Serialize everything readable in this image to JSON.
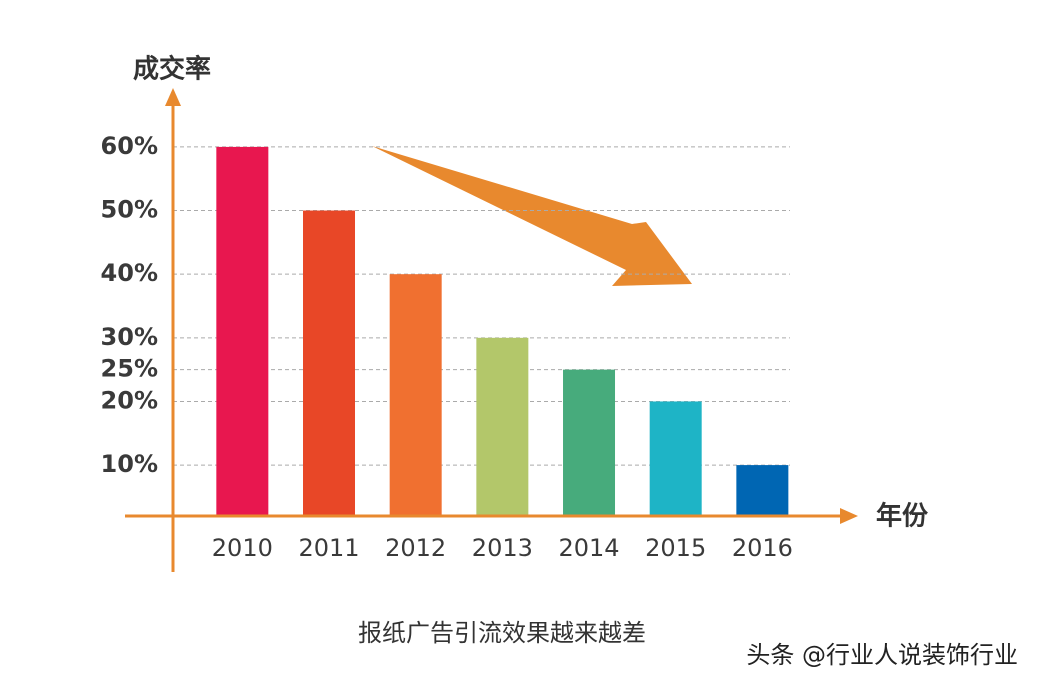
{
  "chart_data": {
    "type": "bar",
    "y_label": "成交率",
    "x_label": "年份",
    "caption": "报纸广告引流效果越来越差",
    "watermark": "头条 @行业人说装饰行业",
    "categories": [
      "2010",
      "2011",
      "2012",
      "2013",
      "2014",
      "2015",
      "2016"
    ],
    "values": [
      60,
      50,
      40,
      30,
      25,
      20,
      10
    ],
    "colors": [
      "#e8174f",
      "#e84727",
      "#f07030",
      "#b3c76a",
      "#47ab7c",
      "#1eb4c6",
      "#0066b3"
    ],
    "ylim": [
      2,
      68
    ],
    "yticks": [
      {
        "value": 10,
        "label": "10%"
      },
      {
        "value": 20,
        "label": "20%"
      },
      {
        "value": 25,
        "label": "25%"
      },
      {
        "value": 30,
        "label": "30%"
      },
      {
        "value": 40,
        "label": "40%"
      },
      {
        "value": 50,
        "label": "50%"
      },
      {
        "value": 60,
        "label": "60%"
      }
    ],
    "grid": true,
    "axis_color": "#e8892e"
  }
}
